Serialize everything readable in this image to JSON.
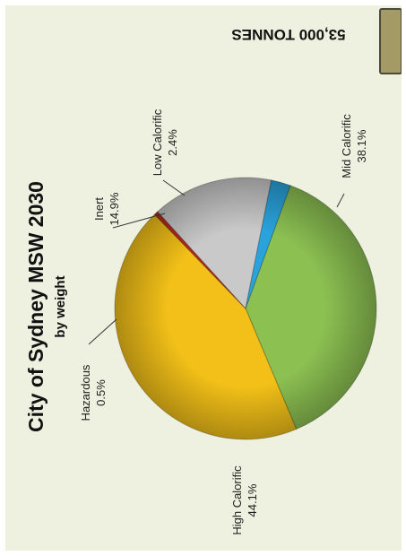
{
  "chart_data": {
    "type": "pie",
    "title": "City of Sydney MSW 2030",
    "subtitle": "by weight",
    "total_label": "53,000 TONNES",
    "slices": [
      {
        "name": "Mid Calorific",
        "percent_label": "38.1%",
        "value": 38.1,
        "color": "#8cc152"
      },
      {
        "name": "High Calorific",
        "percent_label": "44.1%",
        "value": 44.1,
        "color": "#f2c018"
      },
      {
        "name": "Hazardous",
        "percent_label": "0.5%",
        "value": 0.5,
        "color": "#b8291c"
      },
      {
        "name": "Inert",
        "percent_label": "14.9%",
        "value": 14.9,
        "color": "#c9c9c9"
      },
      {
        "name": "Low Calorific",
        "percent_label": "2.4%",
        "value": 2.4,
        "color": "#2aa3dc"
      }
    ]
  },
  "legend": {
    "swatch_color": "#a39a66"
  }
}
